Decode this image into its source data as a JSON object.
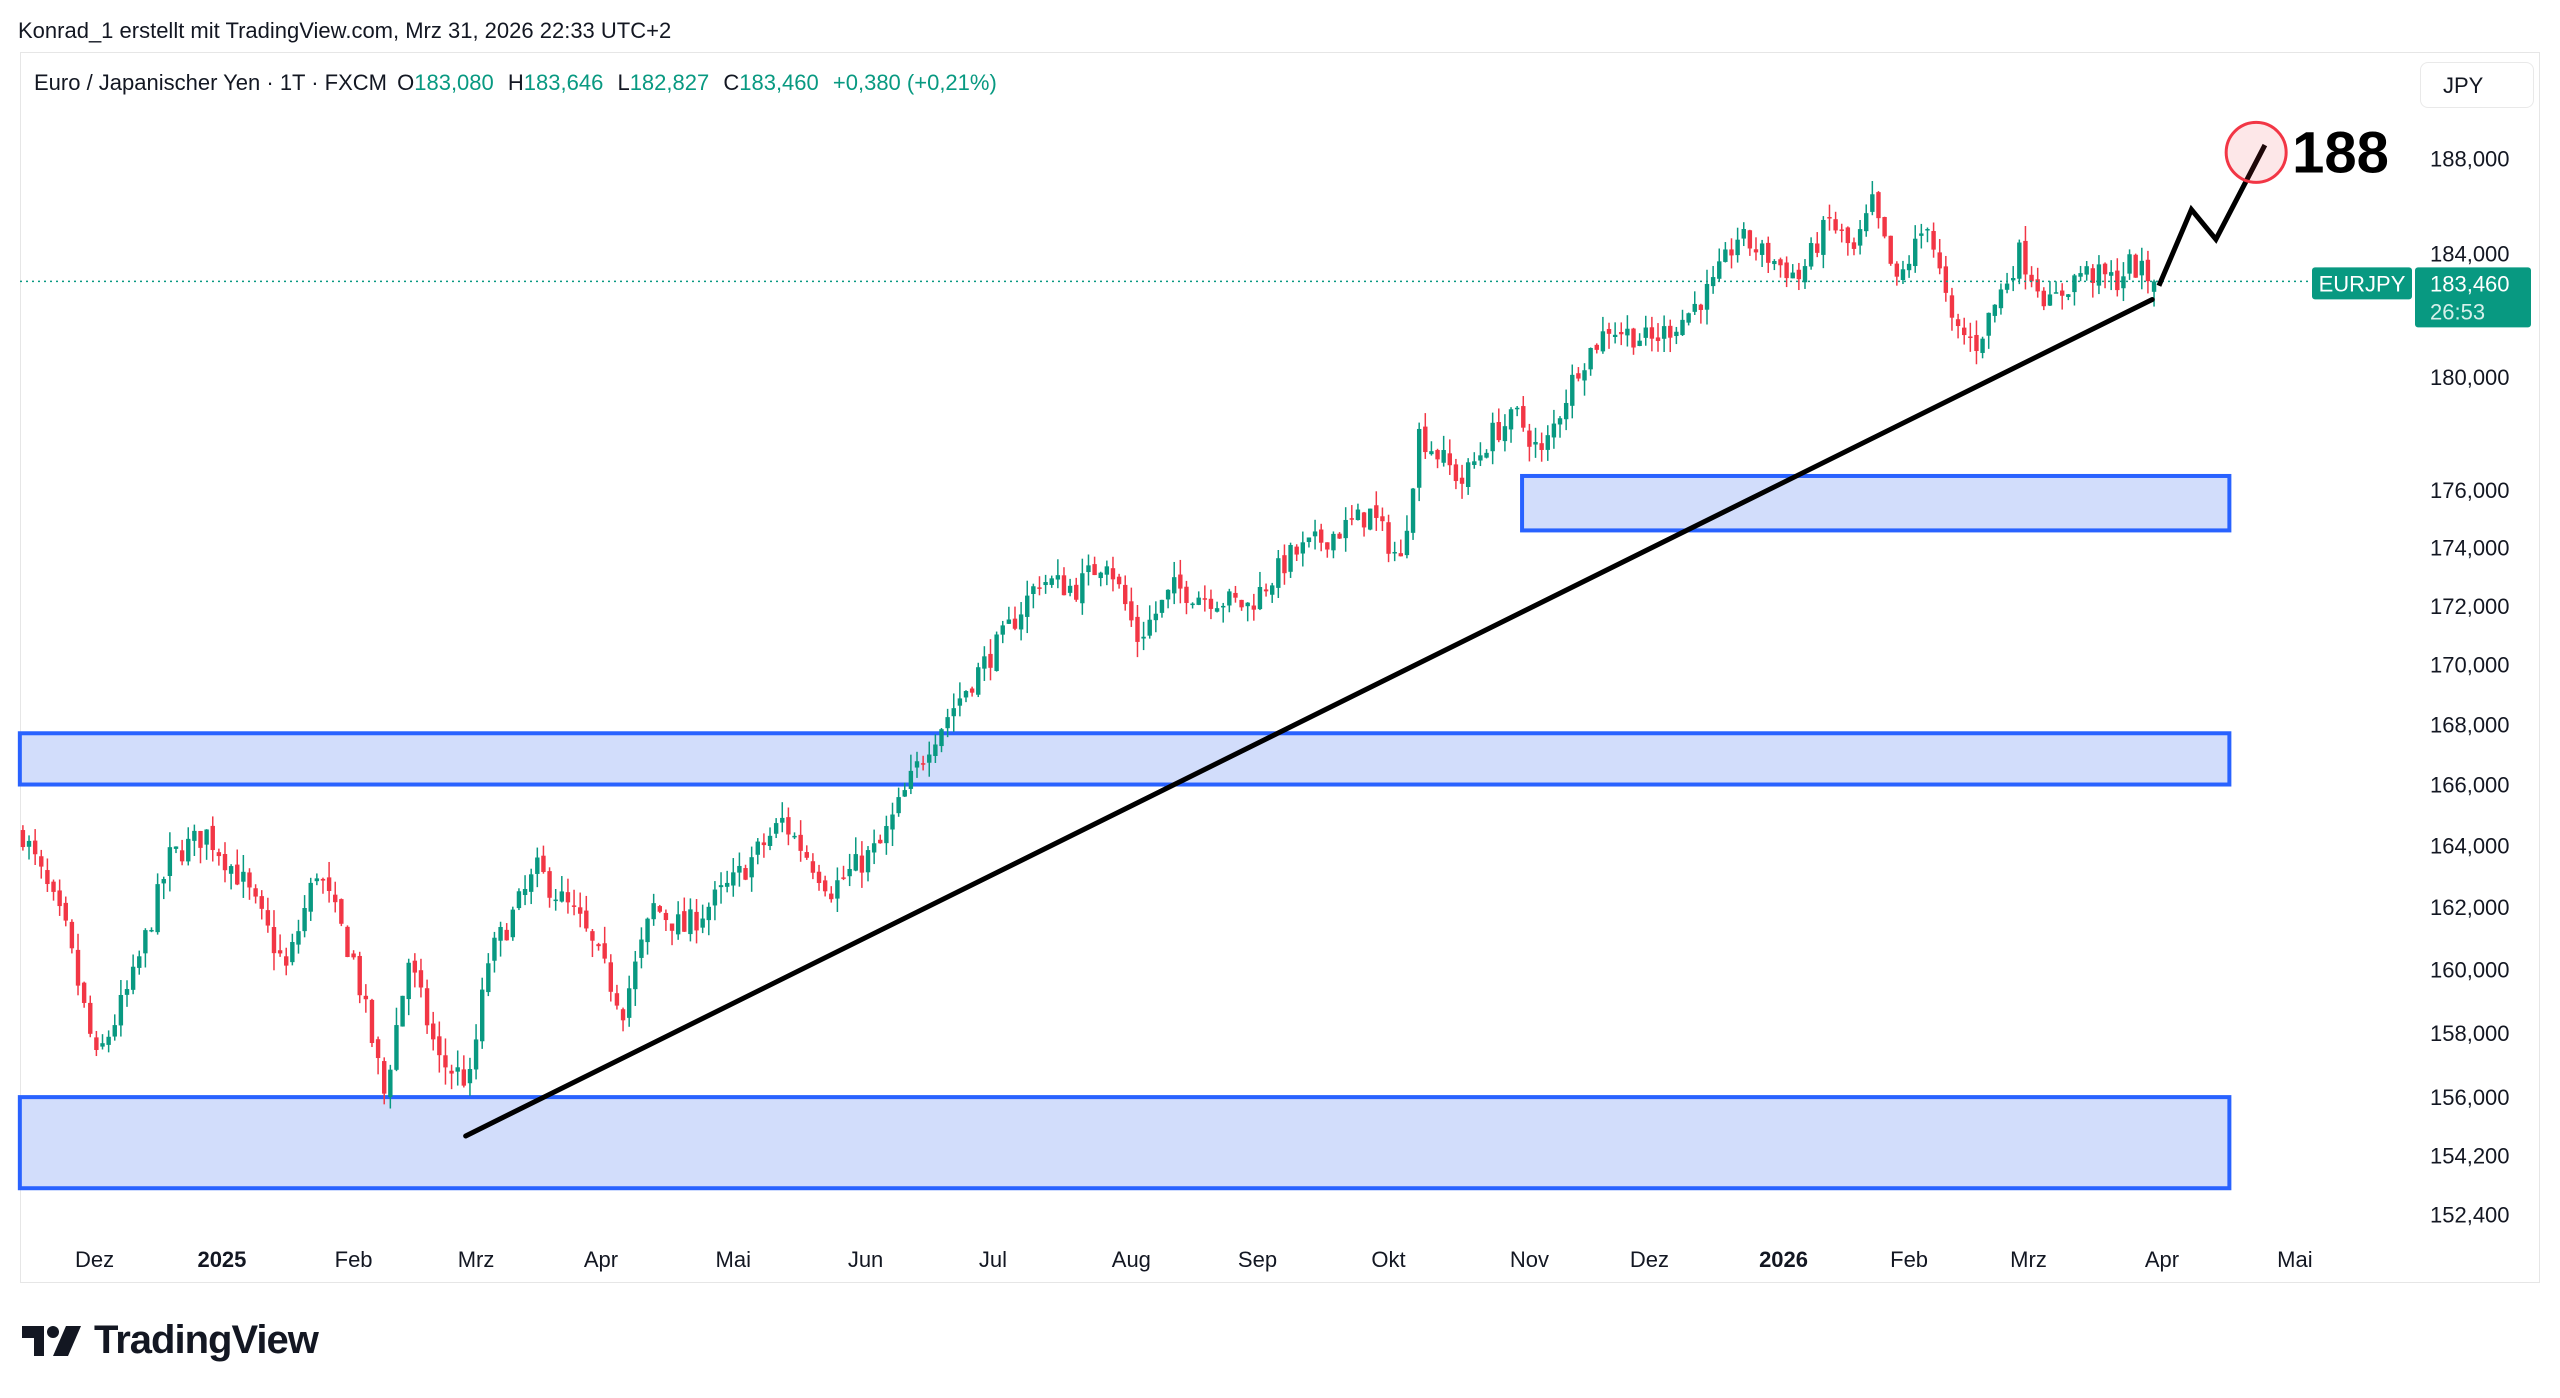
{
  "header": {
    "credit": "Konrad_1 erstellt mit TradingView.com, Mrz 31, 2026 22:33 UTC+2",
    "symbol_desc": "Euro / Japanischer Yen · 1T · FXCM",
    "o_label": "O",
    "o_value": "183,080",
    "h_label": "H",
    "h_value": "183,646",
    "l_label": "L",
    "l_value": "182,827",
    "c_label": "C",
    "c_value": "183,460",
    "change": "+0,380 (+0,21%)"
  },
  "currency_button": "JPY",
  "price_tag": {
    "symbol": "EURJPY",
    "price": "183,460",
    "countdown": "26:53",
    "value": 183.46
  },
  "logo_text": "TradingView",
  "colors": {
    "up": "#089981",
    "down": "#F23645",
    "zone_fill": "#D2DDFB",
    "zone_border": "#2962FF",
    "trend": "#000000",
    "target": "#F23645"
  },
  "chart_data": {
    "type": "candlestick",
    "title": "EURJPY daily",
    "scale": "log",
    "x_unit": "trading-day index (0 = mid Nov 2024, 348 = Mrz 31 2026)",
    "ylim": [
      151.5,
      190.5
    ],
    "y_ticks": [
      {
        "value": 188,
        "label": "188,000"
      },
      {
        "value": 184,
        "label": "184,000"
      },
      {
        "value": 180,
        "label": "180,000"
      },
      {
        "value": 176,
        "label": "176,000"
      },
      {
        "value": 174,
        "label": "174,000"
      },
      {
        "value": 172,
        "label": "172,000"
      },
      {
        "value": 170,
        "label": "170,000"
      },
      {
        "value": 168,
        "label": "168,000"
      },
      {
        "value": 166,
        "label": "166,000"
      },
      {
        "value": 164,
        "label": "164,000"
      },
      {
        "value": 162,
        "label": "162,000"
      },
      {
        "value": 160,
        "label": "160,000"
      },
      {
        "value": 158,
        "label": "158,000"
      },
      {
        "value": 156,
        "label": "156,000"
      },
      {
        "value": 154.2,
        "label": "154,200"
      },
      {
        "value": 152.4,
        "label": "152,400"
      }
    ],
    "x_ticks": [
      {
        "index": 11.7,
        "label": "Dez",
        "bold": false
      },
      {
        "index": 32.5,
        "label": "2025",
        "bold": true
      },
      {
        "index": 54,
        "label": "Feb",
        "bold": false
      },
      {
        "index": 74,
        "label": "Mrz",
        "bold": false
      },
      {
        "index": 94.4,
        "label": "Apr",
        "bold": false
      },
      {
        "index": 116,
        "label": "Mai",
        "bold": false
      },
      {
        "index": 137.6,
        "label": "Jun",
        "bold": false
      },
      {
        "index": 158.4,
        "label": "Jul",
        "bold": false
      },
      {
        "index": 181,
        "label": "Aug",
        "bold": false
      },
      {
        "index": 201.6,
        "label": "Sep",
        "bold": false
      },
      {
        "index": 223,
        "label": "Okt",
        "bold": false
      },
      {
        "index": 246,
        "label": "Nov",
        "bold": false
      },
      {
        "index": 265.6,
        "label": "Dez",
        "bold": false
      },
      {
        "index": 287.5,
        "label": "2026",
        "bold": true
      },
      {
        "index": 308,
        "label": "Feb",
        "bold": false
      },
      {
        "index": 327.5,
        "label": "Mrz",
        "bold": false
      },
      {
        "index": 349.3,
        "label": "Apr",
        "bold": false
      },
      {
        "index": 371,
        "label": "Mai",
        "bold": false
      }
    ],
    "close_path": [
      [
        0,
        164.4
      ],
      [
        7,
        161.2
      ],
      [
        12,
        157.1
      ],
      [
        18,
        159.7
      ],
      [
        24,
        163.6
      ],
      [
        30,
        164.4
      ],
      [
        36,
        162.8
      ],
      [
        43,
        160.0
      ],
      [
        48,
        163.2
      ],
      [
        54,
        160.3
      ],
      [
        59,
        156.1
      ],
      [
        63,
        160.3
      ],
      [
        68,
        157.1
      ],
      [
        73,
        156.5
      ],
      [
        76,
        160.3
      ],
      [
        84,
        163.2
      ],
      [
        91,
        161.5
      ],
      [
        98,
        158.8
      ],
      [
        103,
        162.0
      ],
      [
        108,
        161.3
      ],
      [
        116,
        162.8
      ],
      [
        124,
        164.8
      ],
      [
        132,
        162.6
      ],
      [
        140,
        164.0
      ],
      [
        148,
        167.4
      ],
      [
        154,
        169.2
      ],
      [
        160,
        170.9
      ],
      [
        166,
        172.9
      ],
      [
        172,
        172.6
      ],
      [
        177,
        173.7
      ],
      [
        182,
        170.9
      ],
      [
        188,
        172.6
      ],
      [
        194,
        172.3
      ],
      [
        200,
        172.0
      ],
      [
        207,
        173.7
      ],
      [
        215,
        174.6
      ],
      [
        220,
        175.2
      ],
      [
        225,
        173.5
      ],
      [
        228,
        178.0
      ],
      [
        235,
        176.3
      ],
      [
        240,
        178.0
      ],
      [
        244,
        178.6
      ],
      [
        248,
        177.2
      ],
      [
        254,
        180.4
      ],
      [
        259,
        181.8
      ],
      [
        266,
        181.3
      ],
      [
        271,
        182.1
      ],
      [
        276,
        183.3
      ],
      [
        280,
        185.1
      ],
      [
        284,
        184.5
      ],
      [
        290,
        183.6
      ],
      [
        295,
        185.7
      ],
      [
        299,
        184.5
      ],
      [
        302,
        186.3
      ],
      [
        306,
        183.3
      ],
      [
        311,
        185.7
      ],
      [
        315,
        181.8
      ],
      [
        319,
        181.2
      ],
      [
        326,
        184.5
      ],
      [
        331,
        182.6
      ],
      [
        336,
        183.8
      ],
      [
        342,
        183.5
      ],
      [
        344,
        184.1
      ],
      [
        348,
        183.46
      ]
    ],
    "zones": [
      {
        "from_index": 244.8,
        "to_index": 360.3,
        "top": 176.5,
        "bottom": 174.6
      },
      {
        "from_index": -0.5,
        "to_index": 360.3,
        "top": 167.7,
        "bottom": 166.0
      },
      {
        "from_index": -0.5,
        "to_index": 360.3,
        "top": 156.0,
        "bottom": 153.2
      }
    ],
    "trendline": [
      [
        72.3,
        154.8
      ],
      [
        347.7,
        182.8
      ]
    ],
    "projection": [
      [
        348.8,
        183.3
      ],
      [
        354.1,
        186.1
      ],
      [
        358.1,
        185.0
      ],
      [
        366.1,
        188.5
      ]
    ],
    "target": {
      "index": 365,
      "price": 188.3,
      "label": "188"
    },
    "last_price": 183.46
  }
}
